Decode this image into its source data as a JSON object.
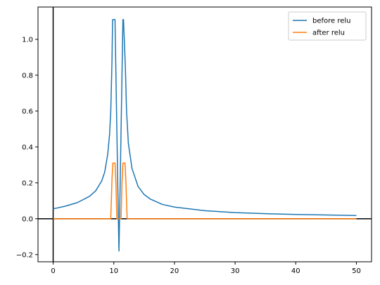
{
  "chart_data": {
    "type": "line",
    "title": "",
    "xlabel": "",
    "ylabel": "",
    "xlim": [
      -2.5,
      52.5
    ],
    "ylim": [
      -0.24,
      1.18
    ],
    "x_ticks": [
      0,
      10,
      20,
      30,
      40,
      50
    ],
    "y_ticks": [
      -0.2,
      0.0,
      0.2,
      0.4,
      0.6,
      0.8,
      1.0
    ],
    "x_tick_labels": [
      "0",
      "10",
      "20",
      "30",
      "40",
      "50"
    ],
    "y_tick_labels": [
      "−0.2",
      "0.0",
      "0.2",
      "0.4",
      "0.6",
      "0.8",
      "1.0"
    ],
    "grid": false,
    "legend_position": "top-right",
    "reference_lines": [
      {
        "orientation": "horizontal",
        "value": 0,
        "color": "#000000"
      },
      {
        "orientation": "vertical",
        "value": 0,
        "color": "#000000"
      }
    ],
    "series": [
      {
        "name": "before relu",
        "color": "#1f77b4",
        "x": [
          0,
          2,
          4,
          6,
          7,
          8,
          8.5,
          9,
          9.3,
          9.5,
          9.7,
          9.8,
          10.2,
          10.4,
          10.6,
          10.75,
          10.85,
          10.95,
          11.1,
          11.3,
          11.5,
          11.6,
          11.9,
          12.1,
          12.4,
          13,
          14,
          15,
          16,
          18,
          20,
          25,
          30,
          35,
          40,
          45,
          50
        ],
        "y": [
          0.055,
          0.07,
          0.09,
          0.125,
          0.155,
          0.21,
          0.26,
          0.36,
          0.47,
          0.6,
          0.88,
          1.11,
          1.11,
          0.7,
          0.3,
          0.0,
          -0.18,
          0.0,
          0.3,
          0.7,
          1.11,
          1.11,
          0.85,
          0.6,
          0.42,
          0.28,
          0.18,
          0.135,
          0.11,
          0.08,
          0.065,
          0.045,
          0.034,
          0.028,
          0.024,
          0.021,
          0.018
        ]
      },
      {
        "name": "after relu",
        "color": "#ff7f0e",
        "x": [
          0,
          9.5,
          9.7,
          9.85,
          10.2,
          10.35,
          10.5,
          11.2,
          11.35,
          11.5,
          11.85,
          12.0,
          12.2,
          50
        ],
        "y": [
          0,
          0,
          0.22,
          0.31,
          0.31,
          0.2,
          0,
          0,
          0.2,
          0.31,
          0.31,
          0.2,
          0,
          0
        ]
      }
    ]
  }
}
